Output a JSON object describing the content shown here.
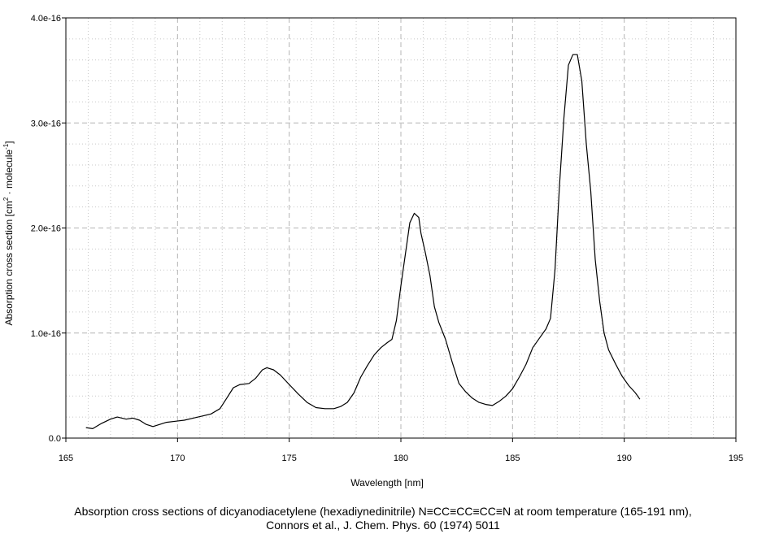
{
  "chart_data": {
    "type": "line",
    "title": "",
    "xlabel": "Wavelength [nm]",
    "ylabel_parts": {
      "prefix": "Absorption cross section [cm",
      "sup1": "2",
      "middle": " · molecule",
      "sup2": "-1",
      "suffix": "]"
    },
    "xlim": [
      165,
      195
    ],
    "ylim": [
      0,
      4e-16
    ],
    "x_ticks": [
      165,
      170,
      175,
      180,
      185,
      190,
      195
    ],
    "x_tick_labels": [
      "165",
      "170",
      "175",
      "180",
      "185",
      "190",
      "195"
    ],
    "y_ticks": [
      0,
      1e-16,
      2e-16,
      3e-16,
      4e-16
    ],
    "y_tick_labels": [
      "0.0",
      "1.0e-16",
      "2.0e-16",
      "3.0e-16",
      "4.0e-16"
    ],
    "grid": true,
    "minor_grid": true,
    "series": [
      {
        "line_color": "#000000",
        "x": [
          165.9,
          166.2,
          166.6,
          167.0,
          167.3,
          167.7,
          168.0,
          168.3,
          168.6,
          168.9,
          169.2,
          169.5,
          169.9,
          170.3,
          170.7,
          171.1,
          171.5,
          171.9,
          172.2,
          172.5,
          172.8,
          173.2,
          173.5,
          173.8,
          174.0,
          174.3,
          174.6,
          175.0,
          175.4,
          175.8,
          176.2,
          176.6,
          177.0,
          177.3,
          177.6,
          177.9,
          178.2,
          178.5,
          178.8,
          179.1,
          179.4,
          179.6,
          179.8,
          180.0,
          180.2,
          180.4,
          180.6,
          180.8,
          180.9,
          181.1,
          181.3,
          181.5,
          181.7,
          182.0,
          182.3,
          182.6,
          182.9,
          183.2,
          183.5,
          183.8,
          184.1,
          184.4,
          184.7,
          185.0,
          185.3,
          185.6,
          185.9,
          186.2,
          186.5,
          186.7,
          186.9,
          187.1,
          187.3,
          187.5,
          187.7,
          187.9,
          188.1,
          188.3,
          188.5,
          188.7,
          188.9,
          189.1,
          189.3,
          189.6,
          189.9,
          190.2,
          190.5,
          190.7
        ],
        "y": [
          1e-17,
          9e-18,
          1.4e-17,
          1.8e-17,
          2e-17,
          1.8e-17,
          1.9e-17,
          1.7e-17,
          1.3e-17,
          1.1e-17,
          1.3e-17,
          1.5e-17,
          1.6e-17,
          1.7e-17,
          1.9e-17,
          2.1e-17,
          2.3e-17,
          2.8e-17,
          3.8e-17,
          4.8e-17,
          5.1e-17,
          5.2e-17,
          5.7e-17,
          6.5e-17,
          6.7e-17,
          6.5e-17,
          6e-17,
          5.1e-17,
          4.2e-17,
          3.4e-17,
          2.9e-17,
          2.8e-17,
          2.8e-17,
          3e-17,
          3.4e-17,
          4.3e-17,
          5.8e-17,
          6.9e-17,
          7.9e-17,
          8.6e-17,
          9.1e-17,
          9.4e-17,
          1.12e-16,
          1.45e-16,
          1.75e-16,
          2.05e-16,
          2.14e-16,
          2.1e-16,
          1.95e-16,
          1.76e-16,
          1.55e-16,
          1.25e-16,
          1.1e-16,
          9.4e-17,
          7.2e-17,
          5.2e-17,
          4.4e-17,
          3.8e-17,
          3.4e-17,
          3.2e-17,
          3.1e-17,
          3.5e-17,
          4e-17,
          4.7e-17,
          5.8e-17,
          7e-17,
          8.6e-17,
          9.5e-17,
          1.04e-16,
          1.14e-16,
          1.6e-16,
          2.4e-16,
          3.05e-16,
          3.55e-16,
          3.65e-16,
          3.65e-16,
          3.4e-16,
          2.8e-16,
          2.35e-16,
          1.7e-16,
          1.3e-16,
          1e-16,
          8.4e-17,
          7.1e-17,
          5.9e-17,
          5e-17,
          4.3e-17,
          3.7e-17
        ]
      }
    ]
  },
  "caption": {
    "line1": "Absorption cross sections of dicyanodiacetylene (hexadiynedinitrile) N≡CC≡CC≡CC≡N at room temperature (165-191 nm),",
    "line2": "Connors et al., J. Chem. Phys. 60  (1974) 5011"
  }
}
